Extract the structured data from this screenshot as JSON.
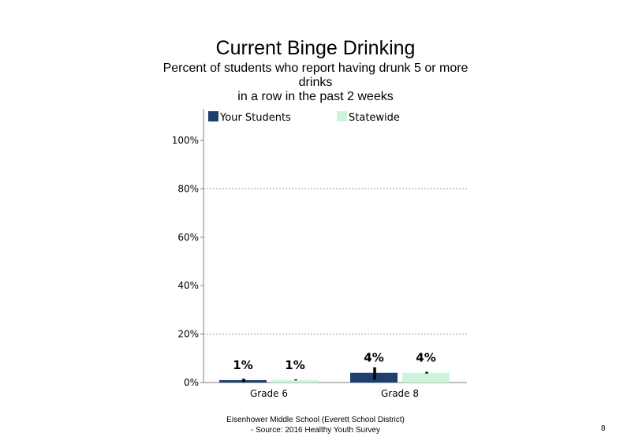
{
  "chart_data": {
    "type": "bar",
    "title": "Current Binge Drinking",
    "subtitle": [
      "Percent of students  who report having drunk 5 or more",
      "drinks",
      "in a row in the past 2 weeks"
    ],
    "categories": [
      "Grade 6",
      "Grade 8"
    ],
    "series": [
      {
        "name": "Your Students",
        "values": [
          1,
          4
        ],
        "labels": [
          "1%",
          "4%"
        ],
        "error_low": [
          0.2,
          1.2
        ],
        "error_high": [
          1.6,
          6.3
        ]
      },
      {
        "name": "Statewide",
        "values": [
          1,
          4
        ],
        "labels": [
          "1%",
          "4%"
        ],
        "error_low": [
          0.9,
          3.7
        ],
        "error_high": [
          1.3,
          4.4
        ]
      }
    ],
    "ylim": [
      0,
      100
    ],
    "yticks": [
      0,
      20,
      40,
      60,
      80,
      100
    ],
    "ytick_labels": [
      "0%",
      "20%",
      "40%",
      "60%",
      "80%",
      "100%"
    ],
    "grid": "dotted horizontal at 20% and 80%",
    "legend_position": "top",
    "colors": {
      "Your Students": "#1f3f6e",
      "Statewide": "#ccf5dc",
      "error_bar": "#000000",
      "gridline": "#9a9a9a",
      "axis": "#7f7f7f"
    }
  },
  "footer": {
    "line1": "Eisenhower Middle School (Everett School District)",
    "line2": "- Source: 2016 Healthy  Youth Survey"
  },
  "page_number": "8"
}
